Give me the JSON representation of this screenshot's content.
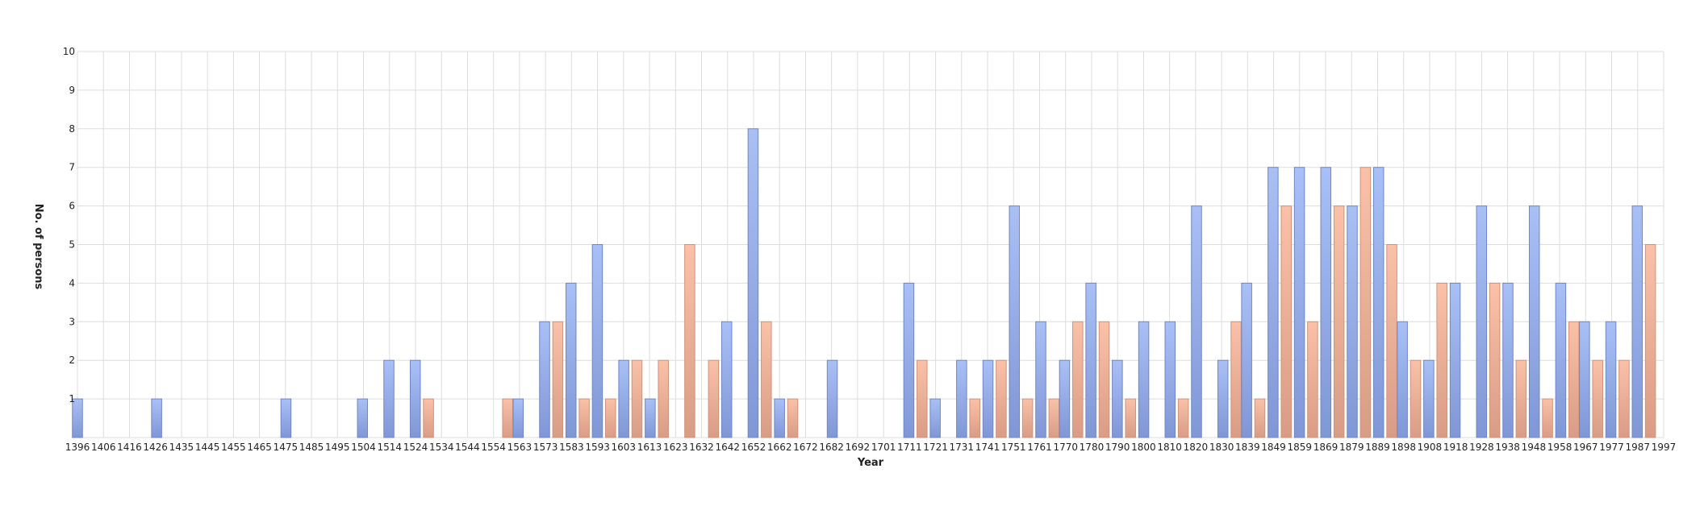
{
  "chart_data": {
    "type": "bar",
    "title": "",
    "xlabel": "Year",
    "ylabel": "No. of persons",
    "ylim": [
      0,
      10
    ],
    "yticks": [
      "1",
      "2",
      "3",
      "4",
      "5",
      "6",
      "7",
      "8",
      "9",
      "10"
    ],
    "grid": true,
    "legend": "none",
    "x_tick_labels": [
      "1396",
      "1406",
      "1416",
      "1426",
      "1435",
      "1445",
      "1455",
      "1465",
      "1475",
      "1485",
      "1495",
      "1504",
      "1514",
      "1524",
      "1534",
      "1544",
      "1554",
      "1563",
      "1573",
      "1583",
      "1593",
      "1603",
      "1613",
      "1623",
      "1632",
      "1642",
      "1652",
      "1662",
      "1672",
      "1682",
      "1692",
      "1701",
      "1711",
      "1721",
      "1731",
      "1741",
      "1751",
      "1761",
      "1770",
      "1780",
      "1790",
      "1800",
      "1810",
      "1820",
      "1830",
      "1839",
      "1849",
      "1859",
      "1869",
      "1879",
      "1889",
      "1898",
      "1908",
      "1918",
      "1928",
      "1938",
      "1948",
      "1958",
      "1967",
      "1977",
      "1987",
      "1997"
    ],
    "colors": {
      "blue": "#94acea",
      "orange": "#f1b49b",
      "grid": "#dddddd"
    },
    "bars": [
      {
        "x": 1396,
        "value": 1,
        "series": "blue"
      },
      {
        "x": 1426,
        "value": 1,
        "series": "blue"
      },
      {
        "x": 1475,
        "value": 1,
        "series": "blue"
      },
      {
        "x": 1504,
        "value": 1,
        "series": "blue"
      },
      {
        "x": 1514,
        "value": 2,
        "series": "blue"
      },
      {
        "x": 1524,
        "value": 2,
        "series": "blue"
      },
      {
        "x": 1529,
        "value": 1,
        "series": "orange"
      },
      {
        "x": 1559,
        "value": 1,
        "series": "orange"
      },
      {
        "x": 1563,
        "value": 1,
        "series": "blue"
      },
      {
        "x": 1573,
        "value": 3,
        "series": "blue"
      },
      {
        "x": 1578,
        "value": 3,
        "series": "orange"
      },
      {
        "x": 1583,
        "value": 4,
        "series": "blue"
      },
      {
        "x": 1588,
        "value": 1,
        "series": "orange"
      },
      {
        "x": 1593,
        "value": 5,
        "series": "blue"
      },
      {
        "x": 1598,
        "value": 1,
        "series": "orange"
      },
      {
        "x": 1603,
        "value": 2,
        "series": "blue"
      },
      {
        "x": 1608,
        "value": 2,
        "series": "orange"
      },
      {
        "x": 1613,
        "value": 1,
        "series": "blue"
      },
      {
        "x": 1618,
        "value": 2,
        "series": "orange"
      },
      {
        "x": 1628,
        "value": 5,
        "series": "orange"
      },
      {
        "x": 1637,
        "value": 2,
        "series": "orange"
      },
      {
        "x": 1642,
        "value": 3,
        "series": "blue"
      },
      {
        "x": 1652,
        "value": 8,
        "series": "blue"
      },
      {
        "x": 1657,
        "value": 3,
        "series": "orange"
      },
      {
        "x": 1662,
        "value": 1,
        "series": "blue"
      },
      {
        "x": 1667,
        "value": 1,
        "series": "orange"
      },
      {
        "x": 1682,
        "value": 2,
        "series": "blue"
      },
      {
        "x": 1711,
        "value": 4,
        "series": "blue"
      },
      {
        "x": 1716,
        "value": 2,
        "series": "orange"
      },
      {
        "x": 1721,
        "value": 1,
        "series": "blue"
      },
      {
        "x": 1731,
        "value": 2,
        "series": "blue"
      },
      {
        "x": 1736,
        "value": 1,
        "series": "orange"
      },
      {
        "x": 1741,
        "value": 2,
        "series": "blue"
      },
      {
        "x": 1746,
        "value": 2,
        "series": "orange"
      },
      {
        "x": 1751,
        "value": 6,
        "series": "blue"
      },
      {
        "x": 1756,
        "value": 1,
        "series": "orange"
      },
      {
        "x": 1761,
        "value": 3,
        "series": "blue"
      },
      {
        "x": 1766,
        "value": 1,
        "series": "orange"
      },
      {
        "x": 1770,
        "value": 2,
        "series": "blue"
      },
      {
        "x": 1775,
        "value": 3,
        "series": "orange"
      },
      {
        "x": 1780,
        "value": 4,
        "series": "blue"
      },
      {
        "x": 1785,
        "value": 3,
        "series": "orange"
      },
      {
        "x": 1790,
        "value": 2,
        "series": "blue"
      },
      {
        "x": 1795,
        "value": 1,
        "series": "orange"
      },
      {
        "x": 1800,
        "value": 3,
        "series": "blue"
      },
      {
        "x": 1810,
        "value": 3,
        "series": "blue"
      },
      {
        "x": 1815,
        "value": 1,
        "series": "orange"
      },
      {
        "x": 1820,
        "value": 6,
        "series": "blue"
      },
      {
        "x": 1830,
        "value": 2,
        "series": "blue"
      },
      {
        "x": 1835,
        "value": 3,
        "series": "orange"
      },
      {
        "x": 1839,
        "value": 4,
        "series": "blue"
      },
      {
        "x": 1844,
        "value": 1,
        "series": "orange"
      },
      {
        "x": 1849,
        "value": 7,
        "series": "blue"
      },
      {
        "x": 1854,
        "value": 6,
        "series": "orange"
      },
      {
        "x": 1859,
        "value": 7,
        "series": "blue"
      },
      {
        "x": 1864,
        "value": 3,
        "series": "orange"
      },
      {
        "x": 1869,
        "value": 7,
        "series": "blue"
      },
      {
        "x": 1874,
        "value": 6,
        "series": "orange"
      },
      {
        "x": 1879,
        "value": 6,
        "series": "blue"
      },
      {
        "x": 1884,
        "value": 7,
        "series": "orange"
      },
      {
        "x": 1889,
        "value": 7,
        "series": "blue"
      },
      {
        "x": 1894,
        "value": 5,
        "series": "orange"
      },
      {
        "x": 1898,
        "value": 3,
        "series": "blue"
      },
      {
        "x": 1903,
        "value": 2,
        "series": "orange"
      },
      {
        "x": 1908,
        "value": 2,
        "series": "blue"
      },
      {
        "x": 1913,
        "value": 4,
        "series": "orange"
      },
      {
        "x": 1918,
        "value": 4,
        "series": "blue"
      },
      {
        "x": 1928,
        "value": 6,
        "series": "blue"
      },
      {
        "x": 1933,
        "value": 4,
        "series": "orange"
      },
      {
        "x": 1938,
        "value": 4,
        "series": "blue"
      },
      {
        "x": 1943,
        "value": 2,
        "series": "orange"
      },
      {
        "x": 1948,
        "value": 6,
        "series": "blue"
      },
      {
        "x": 1953,
        "value": 1,
        "series": "orange"
      },
      {
        "x": 1958,
        "value": 4,
        "series": "blue"
      },
      {
        "x": 1963,
        "value": 3,
        "series": "orange"
      },
      {
        "x": 1967,
        "value": 3,
        "series": "blue"
      },
      {
        "x": 1972,
        "value": 2,
        "series": "orange"
      },
      {
        "x": 1977,
        "value": 3,
        "series": "blue"
      },
      {
        "x": 1982,
        "value": 2,
        "series": "orange"
      },
      {
        "x": 1987,
        "value": 6,
        "series": "blue"
      },
      {
        "x": 1992,
        "value": 5,
        "series": "orange"
      }
    ]
  }
}
